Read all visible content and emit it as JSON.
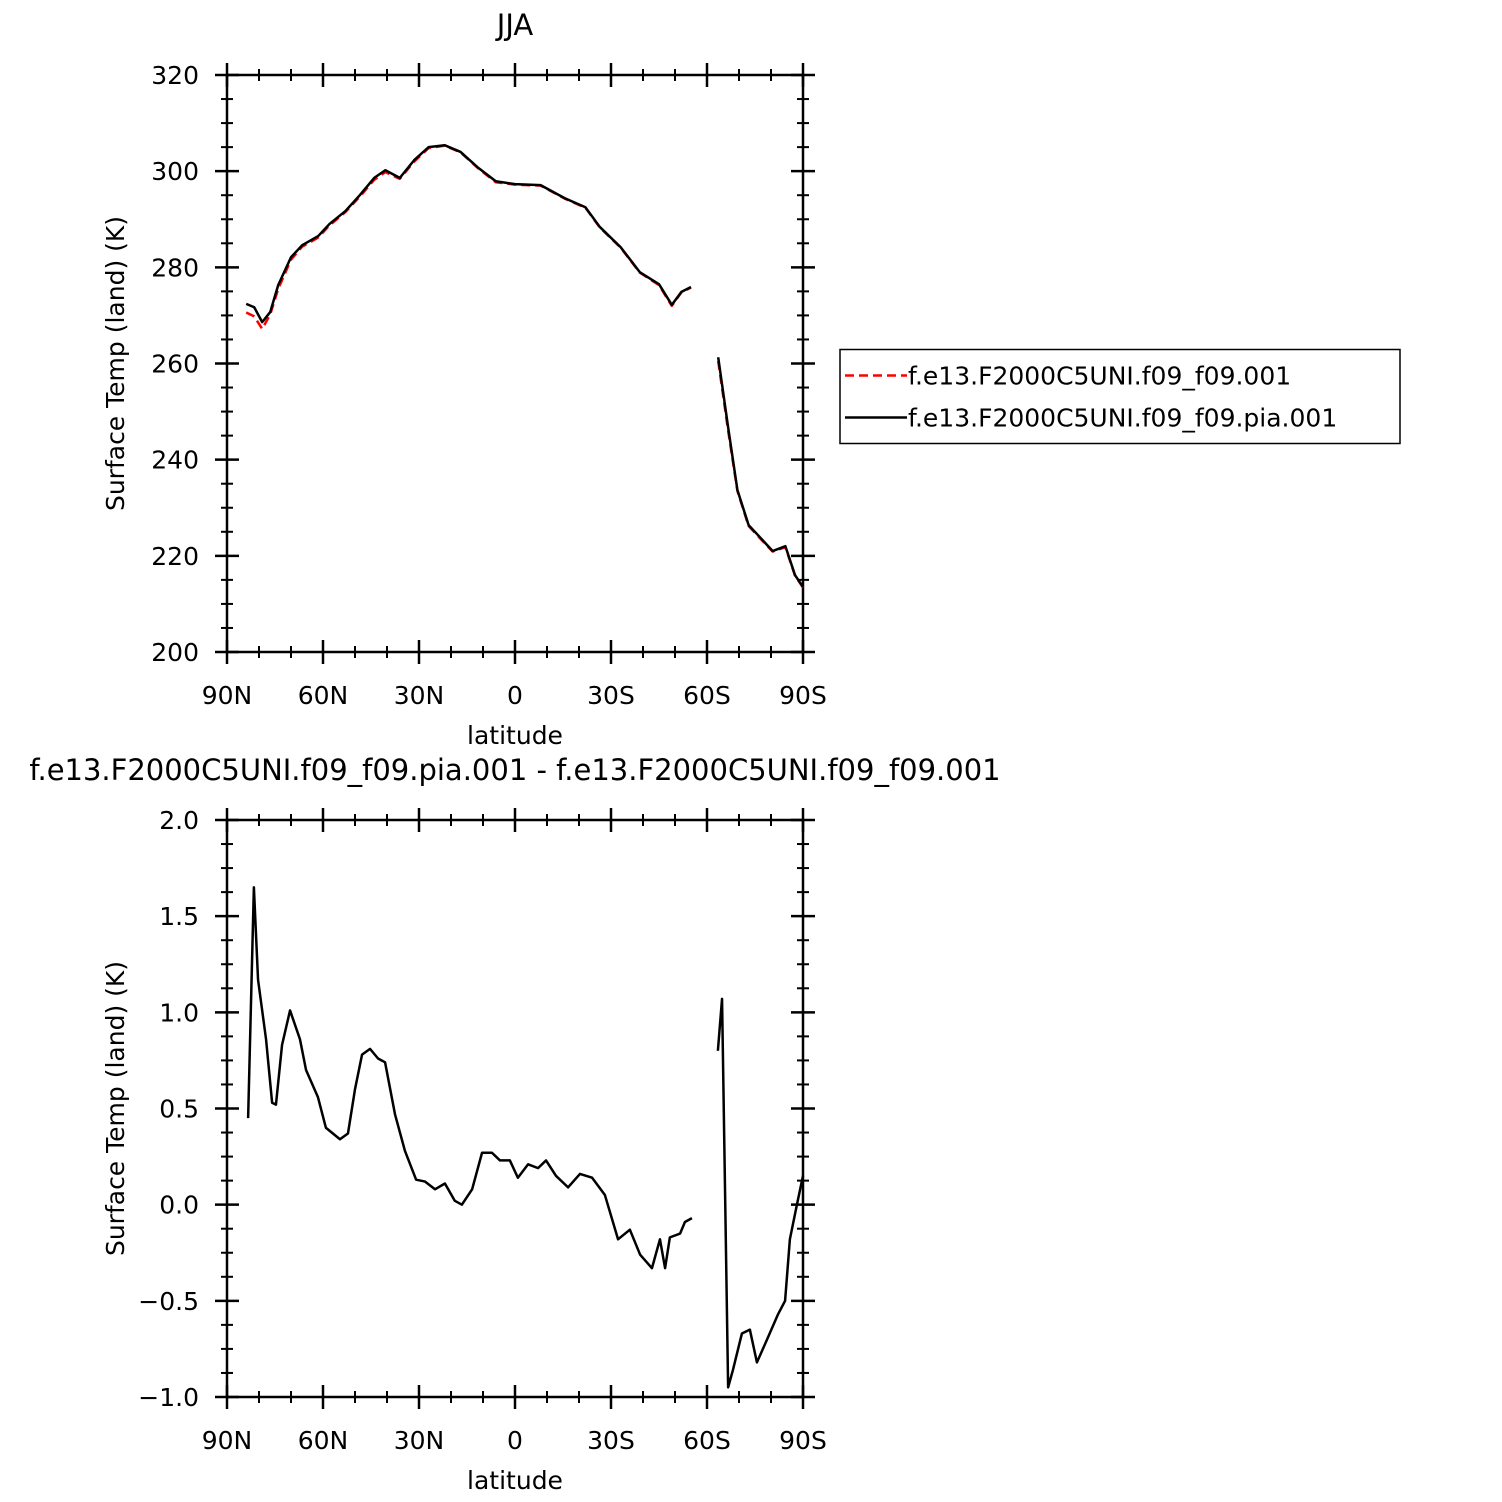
{
  "chart_data": [
    {
      "type": "line",
      "title": "JJA",
      "xlabel": "latitude",
      "ylabel": "Surface Temp (land) (K)",
      "xlim": [
        90,
        -90
      ],
      "xticks": [
        {
          "value": 90,
          "label": "90N"
        },
        {
          "value": 60,
          "label": "60N"
        },
        {
          "value": 30,
          "label": "30N"
        },
        0,
        {
          "value": -30,
          "label": "30S"
        },
        {
          "value": -60,
          "label": "60S"
        },
        {
          "value": -90,
          "label": "90S"
        }
      ],
      "ylim": [
        200,
        320
      ],
      "yticks": [
        200,
        220,
        240,
        260,
        280,
        300,
        320
      ],
      "legend": "right",
      "x": [
        84,
        81.5,
        79,
        76.5,
        74,
        70,
        66.5,
        61.5,
        58,
        53,
        48.5,
        44,
        40.5,
        36,
        31.5,
        27,
        22,
        17,
        11.5,
        6,
        0,
        -8,
        -15.5,
        -22,
        -26.5,
        -33,
        -39,
        -45,
        -49,
        -52,
        -55,
        null,
        -63.5,
        -66.5,
        -69.5,
        -73,
        -76.5,
        -80.5,
        -84.5,
        -87.5,
        -90
      ],
      "series": [
        {
          "name": "f.e13.F2000C5UNI.f09_f09.001",
          "color": "#ff0000",
          "dash": true,
          "values": [
            270.6,
            269.8,
            267.2,
            270.2,
            275.5,
            281.6,
            284.3,
            286.2,
            288.7,
            291.5,
            294.7,
            298.2,
            299.8,
            298.4,
            302.0,
            304.8,
            305.3,
            303.9,
            300.6,
            297.7,
            297.2,
            297.0,
            294.3,
            292.4,
            288.3,
            284.1,
            278.9,
            276.3,
            272.0,
            274.8,
            275.8,
            null,
            260.5,
            246.5,
            233.5,
            226.2,
            223.7,
            220.9,
            221.8,
            215.9,
            213.4
          ]
        },
        {
          "name": "f.e13.F2000C5UNI.f09_f09.pia.001",
          "color": "#000000",
          "dash": false,
          "values": [
            272.4,
            271.7,
            268.6,
            270.7,
            276.3,
            282.1,
            284.6,
            286.5,
            289.0,
            291.7,
            295.0,
            298.6,
            300.2,
            298.6,
            302.3,
            305.0,
            305.4,
            304.0,
            300.7,
            297.9,
            297.3,
            297.1,
            294.4,
            292.5,
            288.4,
            284.2,
            279.0,
            276.5,
            272.2,
            274.9,
            275.9,
            null,
            261.3,
            247.2,
            233.7,
            226.4,
            223.9,
            221.0,
            222.0,
            216.0,
            213.5
          ]
        }
      ]
    },
    {
      "type": "line",
      "title": "f.e13.F2000C5UNI.f09_f09.pia.001 - f.e13.F2000C5UNI.f09_f09.001",
      "xlabel": "latitude",
      "ylabel": "Surface Temp (land) (K)",
      "xlim": [
        90,
        -90
      ],
      "xticks": [
        {
          "value": 90,
          "label": "90N"
        },
        {
          "value": 60,
          "label": "60N"
        },
        {
          "value": 30,
          "label": "30N"
        },
        0,
        {
          "value": -30,
          "label": "30S"
        },
        {
          "value": -60,
          "label": "60S"
        },
        {
          "value": -90,
          "label": "90S"
        }
      ],
      "ylim": [
        -1,
        2
      ],
      "yticks": [
        {
          "value": -1,
          "label": "−1.0"
        },
        {
          "value": -0.5,
          "label": "−0.5"
        },
        {
          "value": 0,
          "label": "0.0"
        },
        0.5,
        {
          "value": 1,
          "label": "1.0"
        },
        1.5,
        {
          "value": 2,
          "label": "2.0"
        }
      ],
      "x": [
        83.4,
        81.6,
        80.3,
        77.8,
        75.9,
        74.7,
        72.8,
        70.3,
        67.2,
        65.3,
        61.6,
        59.1,
        54.7,
        52.2,
        50,
        47.8,
        45.3,
        42.8,
        40.6,
        37.5,
        34.4,
        30.9,
        28.1,
        25,
        21.9,
        18.8,
        16.6,
        13.4,
        10.3,
        7.2,
        4.7,
        1.6,
        -0.9,
        -4.1,
        -7.2,
        -9.7,
        -12.8,
        -16.6,
        -20.3,
        -24.1,
        -28.1,
        -32.2,
        -35.9,
        -39.1,
        -42.8,
        -45.3,
        -46.9,
        -48.4,
        -51.6,
        -53.1,
        -55.3,
        null,
        -63.4,
        -64.7,
        -66.6,
        -68.1,
        -70.9,
        -73.4,
        -75.6,
        -78.8,
        -82.2,
        -84.4,
        -85.9,
        -88.1,
        -90
      ],
      "series": [
        {
          "color": "#000000",
          "dash": false,
          "values": [
            0.45,
            1.65,
            1.17,
            0.86,
            0.53,
            0.52,
            0.83,
            1.01,
            0.86,
            0.7,
            0.56,
            0.4,
            0.34,
            0.37,
            0.6,
            0.78,
            0.81,
            0.76,
            0.74,
            0.47,
            0.28,
            0.13,
            0.12,
            0.08,
            0.11,
            0.02,
            0.0,
            0.08,
            0.27,
            0.27,
            0.23,
            0.23,
            0.14,
            0.21,
            0.19,
            0.23,
            0.15,
            0.09,
            0.16,
            0.14,
            0.05,
            -0.18,
            -0.13,
            -0.26,
            -0.33,
            -0.18,
            -0.33,
            -0.17,
            -0.15,
            -0.09,
            -0.07,
            null,
            0.8,
            1.07,
            -0.95,
            -0.86,
            -0.67,
            -0.65,
            -0.82,
            -0.7,
            -0.57,
            -0.5,
            -0.18,
            0.0,
            0.15
          ]
        }
      ]
    }
  ]
}
